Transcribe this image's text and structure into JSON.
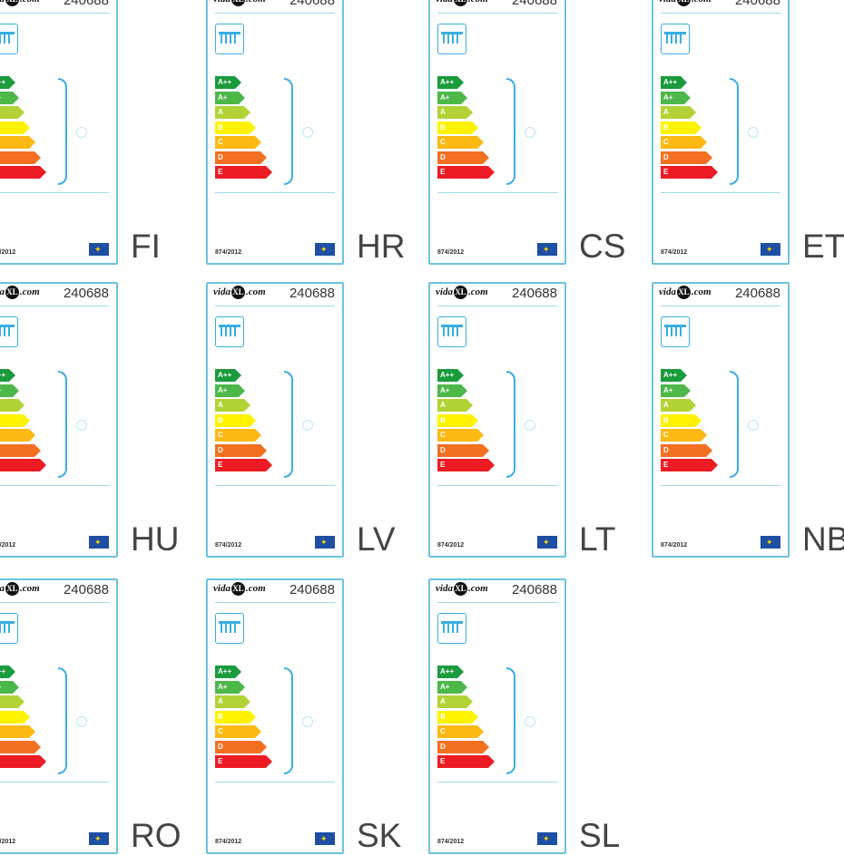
{
  "brand": "vidaXL.com",
  "product_code": "240688",
  "regulation": "874/2012",
  "energy_classes": [
    {
      "label": "A++",
      "color": "#1a9b3c"
    },
    {
      "label": "A+",
      "color": "#4cb847"
    },
    {
      "label": "A",
      "color": "#b2d235"
    },
    {
      "label": "B",
      "color": "#fff200"
    },
    {
      "label": "C",
      "color": "#fdb913"
    },
    {
      "label": "D",
      "color": "#f37021"
    },
    {
      "label": "E",
      "color": "#ed1c24"
    }
  ],
  "labels": [
    {
      "lang": "FI"
    },
    {
      "lang": "HR"
    },
    {
      "lang": "CS"
    },
    {
      "lang": "ET"
    },
    {
      "lang": "HU"
    },
    {
      "lang": "LV"
    },
    {
      "lang": "LT"
    },
    {
      "lang": "NB"
    },
    {
      "lang": "RO"
    },
    {
      "lang": "SK"
    },
    {
      "lang": "SL"
    }
  ]
}
